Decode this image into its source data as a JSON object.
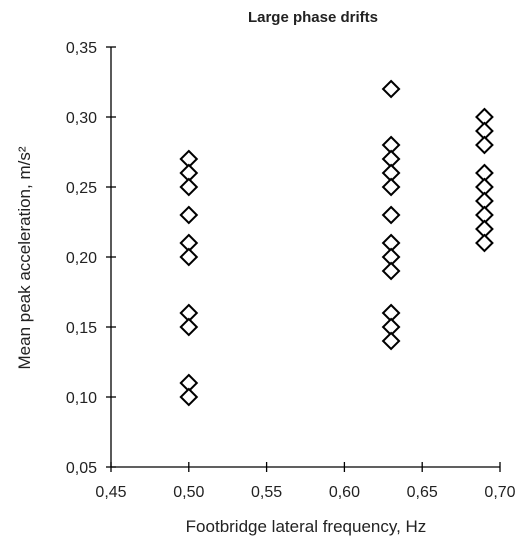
{
  "chart_data": {
    "type": "scatter",
    "title": "Large phase drifts",
    "xlabel": "Footbridge lateral frequency, Hz",
    "ylabel": "Mean peak acceleration, m/s²",
    "xlim": [
      0.45,
      0.7
    ],
    "ylim": [
      0.05,
      0.35
    ],
    "xticks": [
      "0,45",
      "0,50",
      "0,55",
      "0,60",
      "0,65",
      "0,70"
    ],
    "yticks": [
      "0,05",
      "0,10",
      "0,15",
      "0,20",
      "0,25",
      "0,30",
      "0,35"
    ],
    "marker": "diamond-open",
    "grid": false,
    "legend": "none",
    "colors": {
      "marker": "#000000",
      "axis": "#000000",
      "text": "#222222"
    },
    "series": [
      {
        "points": [
          [
            0.5,
            0.27
          ],
          [
            0.5,
            0.26
          ],
          [
            0.5,
            0.25
          ],
          [
            0.5,
            0.23
          ],
          [
            0.5,
            0.21
          ],
          [
            0.5,
            0.2
          ],
          [
            0.5,
            0.16
          ],
          [
            0.5,
            0.15
          ],
          [
            0.5,
            0.11
          ],
          [
            0.5,
            0.1
          ],
          [
            0.63,
            0.32
          ],
          [
            0.63,
            0.28
          ],
          [
            0.63,
            0.27
          ],
          [
            0.63,
            0.26
          ],
          [
            0.63,
            0.25
          ],
          [
            0.63,
            0.23
          ],
          [
            0.63,
            0.21
          ],
          [
            0.63,
            0.2
          ],
          [
            0.63,
            0.19
          ],
          [
            0.63,
            0.16
          ],
          [
            0.63,
            0.15
          ],
          [
            0.63,
            0.14
          ],
          [
            0.69,
            0.3
          ],
          [
            0.69,
            0.29
          ],
          [
            0.69,
            0.28
          ],
          [
            0.69,
            0.26
          ],
          [
            0.69,
            0.25
          ],
          [
            0.69,
            0.24
          ],
          [
            0.69,
            0.23
          ],
          [
            0.69,
            0.22
          ],
          [
            0.69,
            0.21
          ]
        ]
      }
    ]
  }
}
